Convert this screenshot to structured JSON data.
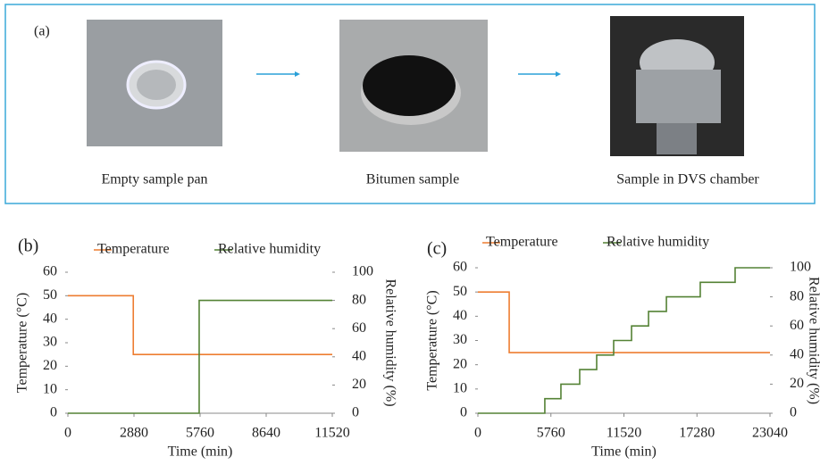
{
  "panel_a": {
    "label": "(a)",
    "captions": [
      "Empty sample pan",
      "Bitumen sample",
      "Sample in DVS chamber"
    ]
  },
  "chart_data": [
    {
      "type": "line",
      "label": "(b)",
      "xlabel": "Time (min)",
      "ylabel": "Temperature (°C)",
      "y2label": "Relative humidity (%)",
      "xlim": [
        0,
        11520
      ],
      "xticks": [
        0,
        2880,
        5760,
        8640,
        11520
      ],
      "ylim": [
        0,
        60
      ],
      "yticks": [
        0,
        10,
        20,
        30,
        40,
        50,
        60
      ],
      "y2lim": [
        0,
        100
      ],
      "y2ticks": [
        0,
        20,
        40,
        60,
        80,
        100
      ],
      "legend": "top",
      "series": [
        {
          "name": "Temperature",
          "color": "#ed7d31",
          "x": [
            0,
            2850,
            2850,
            11520
          ],
          "values": [
            50,
            50,
            25,
            25
          ]
        },
        {
          "name": "Relative humidity",
          "color": "#548235",
          "axis": "y2",
          "x": [
            0,
            5720,
            5720,
            11520
          ],
          "values": [
            0,
            0,
            80,
            80
          ]
        }
      ]
    },
    {
      "type": "line",
      "label": "(c)",
      "xlabel": "Time (min)",
      "ylabel": "Temperature (°C)",
      "y2label": "Relative humidity (%)",
      "xlim": [
        0,
        23040
      ],
      "xticks": [
        0,
        5760,
        11520,
        17280,
        23040
      ],
      "ylim": [
        0,
        60
      ],
      "yticks": [
        0,
        10,
        20,
        30,
        40,
        50,
        60
      ],
      "y2lim": [
        0,
        100
      ],
      "y2ticks": [
        0,
        20,
        40,
        60,
        80,
        100
      ],
      "legend": "top",
      "series": [
        {
          "name": "Temperature",
          "color": "#ed7d31",
          "x": [
            0,
            2470,
            2470,
            23040
          ],
          "values": [
            50,
            50,
            25,
            25
          ]
        },
        {
          "name": "Relative humidity",
          "color": "#548235",
          "axis": "y2",
          "x": [
            0,
            5280,
            5280,
            6550,
            6550,
            8030,
            8030,
            9370,
            9370,
            10710,
            10710,
            12120,
            12120,
            13460,
            13460,
            14870,
            14870,
            17540,
            17540,
            20290,
            20290,
            23040
          ],
          "values": [
            0,
            0,
            10,
            10,
            20,
            20,
            30,
            30,
            40,
            40,
            50,
            50,
            60,
            60,
            70,
            70,
            80,
            80,
            90,
            90,
            100,
            100
          ]
        }
      ]
    }
  ]
}
